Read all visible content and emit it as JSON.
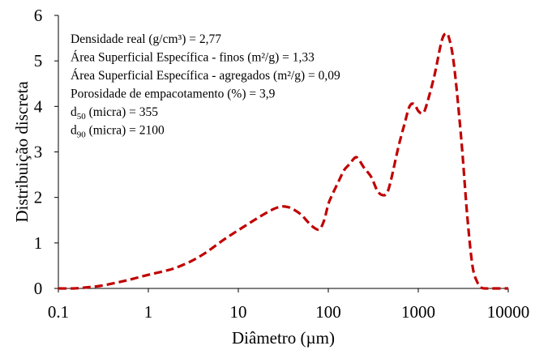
{
  "chart_data": {
    "type": "line",
    "xlabel": "Diâmetro (µm)",
    "ylabel": "Distribuição discreta",
    "x_scale": "log",
    "xlim": [
      0.1,
      10000
    ],
    "ylim": [
      0,
      6
    ],
    "x_ticks": [
      "0.1",
      "1",
      "10",
      "100",
      "1000",
      "10000"
    ],
    "y_ticks": [
      "0",
      "1",
      "2",
      "3",
      "4",
      "5",
      "6"
    ],
    "grid": false,
    "line_color": "#C00000",
    "line_style": "dashed",
    "annotations": [
      {
        "text": "Densidade real (g/cm³) = 2,77"
      },
      {
        "text": "Área Superficial Específica - finos (m²/g) = 1,33"
      },
      {
        "text": "Área Superficial Específica - agregados (m²/g) = 0,09"
      },
      {
        "text": "Porosidade de empacotamento (%) = 3,9"
      },
      {
        "prefix": "d",
        "sub": "50",
        "text": " (micra) = 355"
      },
      {
        "prefix": "d",
        "sub": "90",
        "text": " (micra) = 2100"
      }
    ],
    "series": [
      {
        "x": [
          0.1,
          0.15,
          0.2,
          0.3,
          0.5,
          0.7,
          1,
          1.5,
          2,
          3,
          4,
          5,
          7,
          10,
          15,
          20,
          25,
          30,
          35,
          40,
          50,
          60,
          70,
          80,
          90,
          100,
          110,
          130,
          150,
          170,
          200,
          220,
          250,
          300,
          350,
          400,
          450,
          500,
          600,
          700,
          800,
          900,
          1000,
          1100,
          1200,
          1500,
          1800,
          2000,
          2200,
          2500,
          3000,
          3500,
          4000,
          4500,
          5000,
          5500,
          7000,
          10000
        ],
        "y": [
          0,
          0,
          0.02,
          0.06,
          0.15,
          0.22,
          0.3,
          0.38,
          0.45,
          0.6,
          0.74,
          0.87,
          1.08,
          1.28,
          1.5,
          1.65,
          1.75,
          1.8,
          1.79,
          1.75,
          1.62,
          1.45,
          1.33,
          1.3,
          1.5,
          1.85,
          2.05,
          2.35,
          2.6,
          2.72,
          2.88,
          2.82,
          2.65,
          2.45,
          2.15,
          2.05,
          2.1,
          2.4,
          3.1,
          3.6,
          4.0,
          4.05,
          3.9,
          3.85,
          3.95,
          4.65,
          5.4,
          5.6,
          5.5,
          4.9,
          3.3,
          1.6,
          0.5,
          0.15,
          0.02,
          0,
          0,
          0
        ]
      }
    ]
  }
}
